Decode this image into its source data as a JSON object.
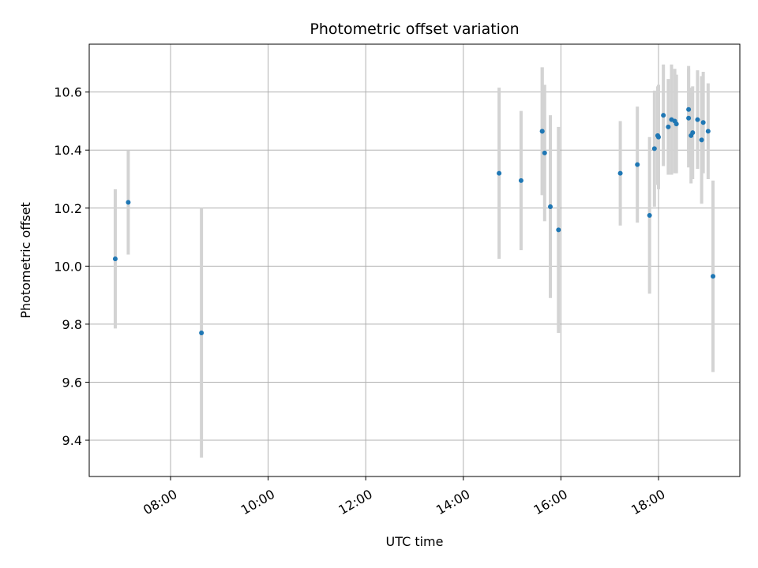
{
  "chart_data": {
    "type": "scatter",
    "title": "Photometric offset variation",
    "xlabel": "UTC time",
    "ylabel": "Photometric offset",
    "x_unit": "UTC time (HH:MM)",
    "xlim": [
      "06:20",
      "19:40"
    ],
    "ylim": [
      9.275,
      10.765
    ],
    "x_ticks": [
      "08:00",
      "10:00",
      "12:00",
      "14:00",
      "16:00",
      "18:00"
    ],
    "y_ticks": [
      9.4,
      9.6,
      9.8,
      10.0,
      10.2,
      10.4,
      10.6
    ],
    "y_tick_labels": [
      "9.4",
      "9.6",
      "9.8",
      "10.0",
      "10.2",
      "10.4",
      "10.6"
    ],
    "grid": true,
    "marker_color": "#1f77b4",
    "errorbar_color": "#d3d3d3",
    "points": [
      {
        "x": "06:52",
        "y": 10.025,
        "err": 0.24
      },
      {
        "x": "07:08",
        "y": 10.22,
        "err": 0.18
      },
      {
        "x": "08:38",
        "y": 9.77,
        "err": 0.43
      },
      {
        "x": "14:44",
        "y": 10.32,
        "err": 0.295
      },
      {
        "x": "15:11",
        "y": 10.295,
        "err": 0.24
      },
      {
        "x": "15:37",
        "y": 10.465,
        "err": 0.22
      },
      {
        "x": "15:37",
        "y": 10.465,
        "err": 0.22
      },
      {
        "x": "15:40",
        "y": 10.39,
        "err": 0.235
      },
      {
        "x": "15:47",
        "y": 10.205,
        "err": 0.315
      },
      {
        "x": "15:57",
        "y": 10.125,
        "err": 0.355
      },
      {
        "x": "17:13",
        "y": 10.32,
        "err": 0.18
      },
      {
        "x": "17:34",
        "y": 10.35,
        "err": 0.2
      },
      {
        "x": "17:49",
        "y": 10.175,
        "err": 0.27
      },
      {
        "x": "17:55",
        "y": 10.405,
        "err": 0.2
      },
      {
        "x": "17:59",
        "y": 10.45,
        "err": 0.17
      },
      {
        "x": "18:00",
        "y": 10.445,
        "err": 0.18
      },
      {
        "x": "18:06",
        "y": 10.52,
        "err": 0.175
      },
      {
        "x": "18:12",
        "y": 10.48,
        "err": 0.165
      },
      {
        "x": "18:16",
        "y": 10.505,
        "err": 0.19
      },
      {
        "x": "18:20",
        "y": 10.5,
        "err": 0.18
      },
      {
        "x": "18:22",
        "y": 10.49,
        "err": 0.17
      },
      {
        "x": "18:37",
        "y": 10.54,
        "err": 0.15
      },
      {
        "x": "18:37",
        "y": 10.51,
        "err": 0.17
      },
      {
        "x": "18:40",
        "y": 10.45,
        "err": 0.165
      },
      {
        "x": "18:42",
        "y": 10.46,
        "err": 0.16
      },
      {
        "x": "18:48",
        "y": 10.505,
        "err": 0.17
      },
      {
        "x": "18:53",
        "y": 10.435,
        "err": 0.22
      },
      {
        "x": "18:55",
        "y": 10.495,
        "err": 0.175
      },
      {
        "x": "19:01",
        "y": 10.465,
        "err": 0.165
      },
      {
        "x": "19:07",
        "y": 9.965,
        "err": 0.33
      }
    ]
  }
}
